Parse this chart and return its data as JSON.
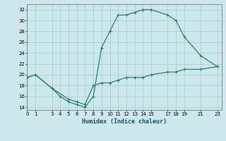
{
  "line1_x": [
    0,
    1,
    3,
    4,
    5,
    6,
    7,
    8,
    9,
    10,
    11,
    12,
    13,
    14,
    15,
    17,
    18,
    19,
    21,
    23
  ],
  "line1_y": [
    19.5,
    20.0,
    17.5,
    16.0,
    15.0,
    14.5,
    14.0,
    16.0,
    25.0,
    28.0,
    31.0,
    31.0,
    31.5,
    32.0,
    32.0,
    31.0,
    30.0,
    27.0,
    23.5,
    21.5
  ],
  "line2_x": [
    0,
    1,
    3,
    5,
    6,
    7,
    8,
    9,
    10,
    11,
    12,
    13,
    14,
    15,
    17,
    18,
    19,
    21,
    23
  ],
  "line2_y": [
    19.5,
    20.0,
    17.5,
    15.5,
    15.0,
    14.5,
    18.0,
    18.5,
    18.5,
    19.0,
    19.5,
    19.5,
    19.5,
    20.0,
    20.5,
    20.5,
    21.0,
    21.0,
    21.5
  ],
  "line_color": "#2a7d6e",
  "bg_color": "#cce8ec",
  "grid_color": "#aad0d8",
  "xlabel": "Humidex (Indice chaleur)",
  "xlim": [
    0,
    23.5
  ],
  "ylim": [
    13.5,
    33
  ],
  "yticks": [
    14,
    16,
    18,
    20,
    22,
    24,
    26,
    28,
    30,
    32
  ],
  "xticks": [
    0,
    1,
    3,
    4,
    5,
    6,
    7,
    8,
    9,
    10,
    11,
    12,
    13,
    14,
    15,
    17,
    18,
    19,
    21,
    23
  ]
}
